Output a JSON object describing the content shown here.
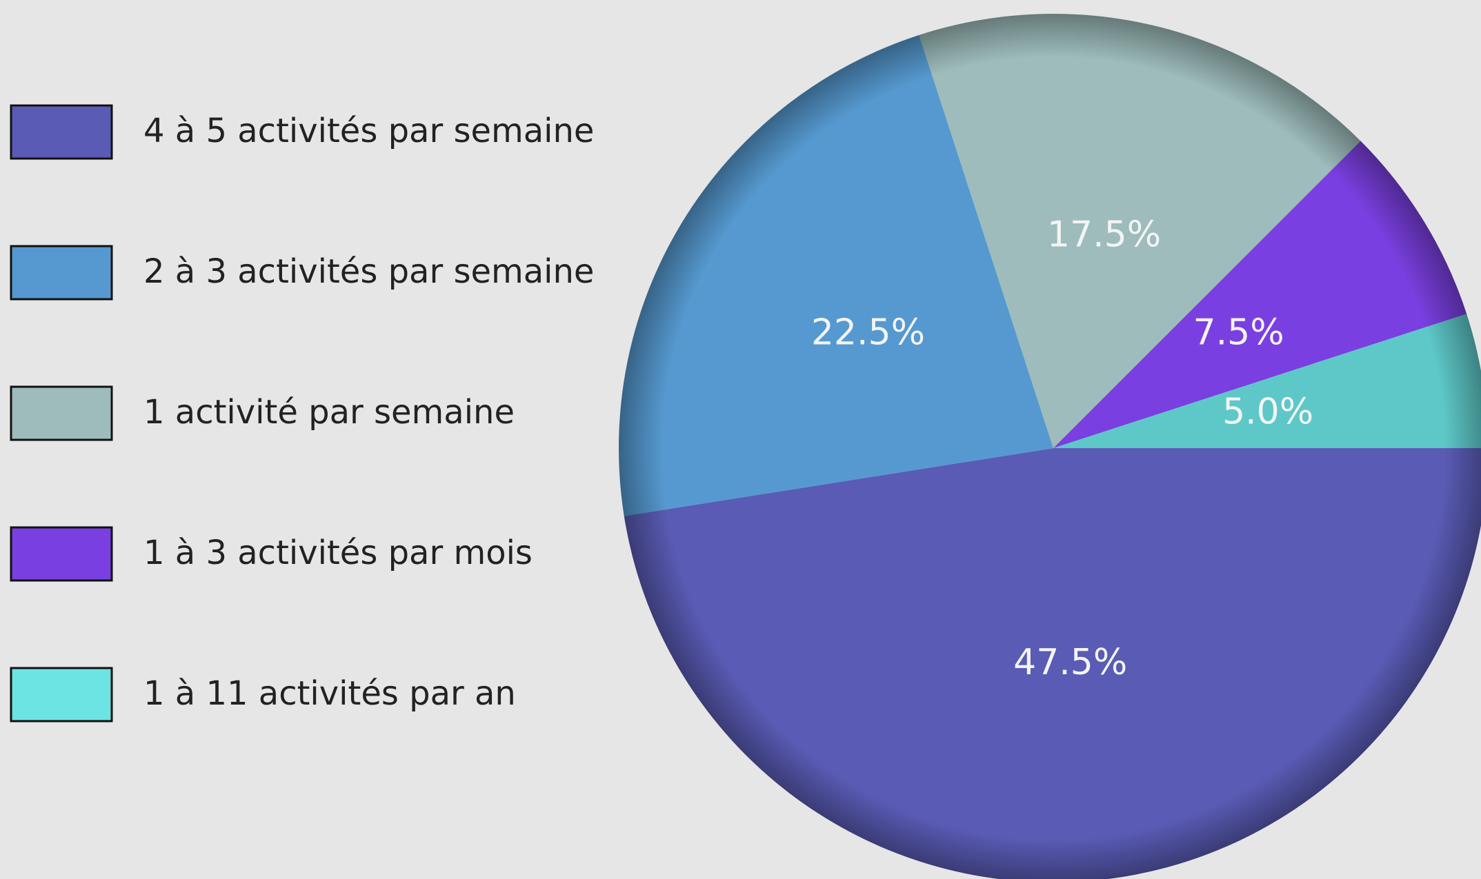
{
  "chart_data": {
    "type": "pie",
    "categories": [
      "4 à 5 activités par semaine",
      "2 à 3 activités par semaine",
      "1 activité par semaine",
      "1 à 3 activités par mois",
      "1 à 11 activités par an"
    ],
    "values": [
      47.5,
      22.5,
      17.5,
      7.5,
      5.0
    ],
    "value_labels": [
      "47.5%",
      "22.5%",
      "17.5%",
      "7.5%",
      "5.0%"
    ],
    "colors": [
      "#5a5bb5",
      "#5599d0",
      "#9dbcbb",
      "#7a3fe0",
      "#5ec8c8"
    ],
    "legend_colors": [
      "#5a5bb5",
      "#5599d0",
      "#9dbcbb",
      "#7a3fe0",
      "#6ce4e4"
    ],
    "legend": "left"
  }
}
